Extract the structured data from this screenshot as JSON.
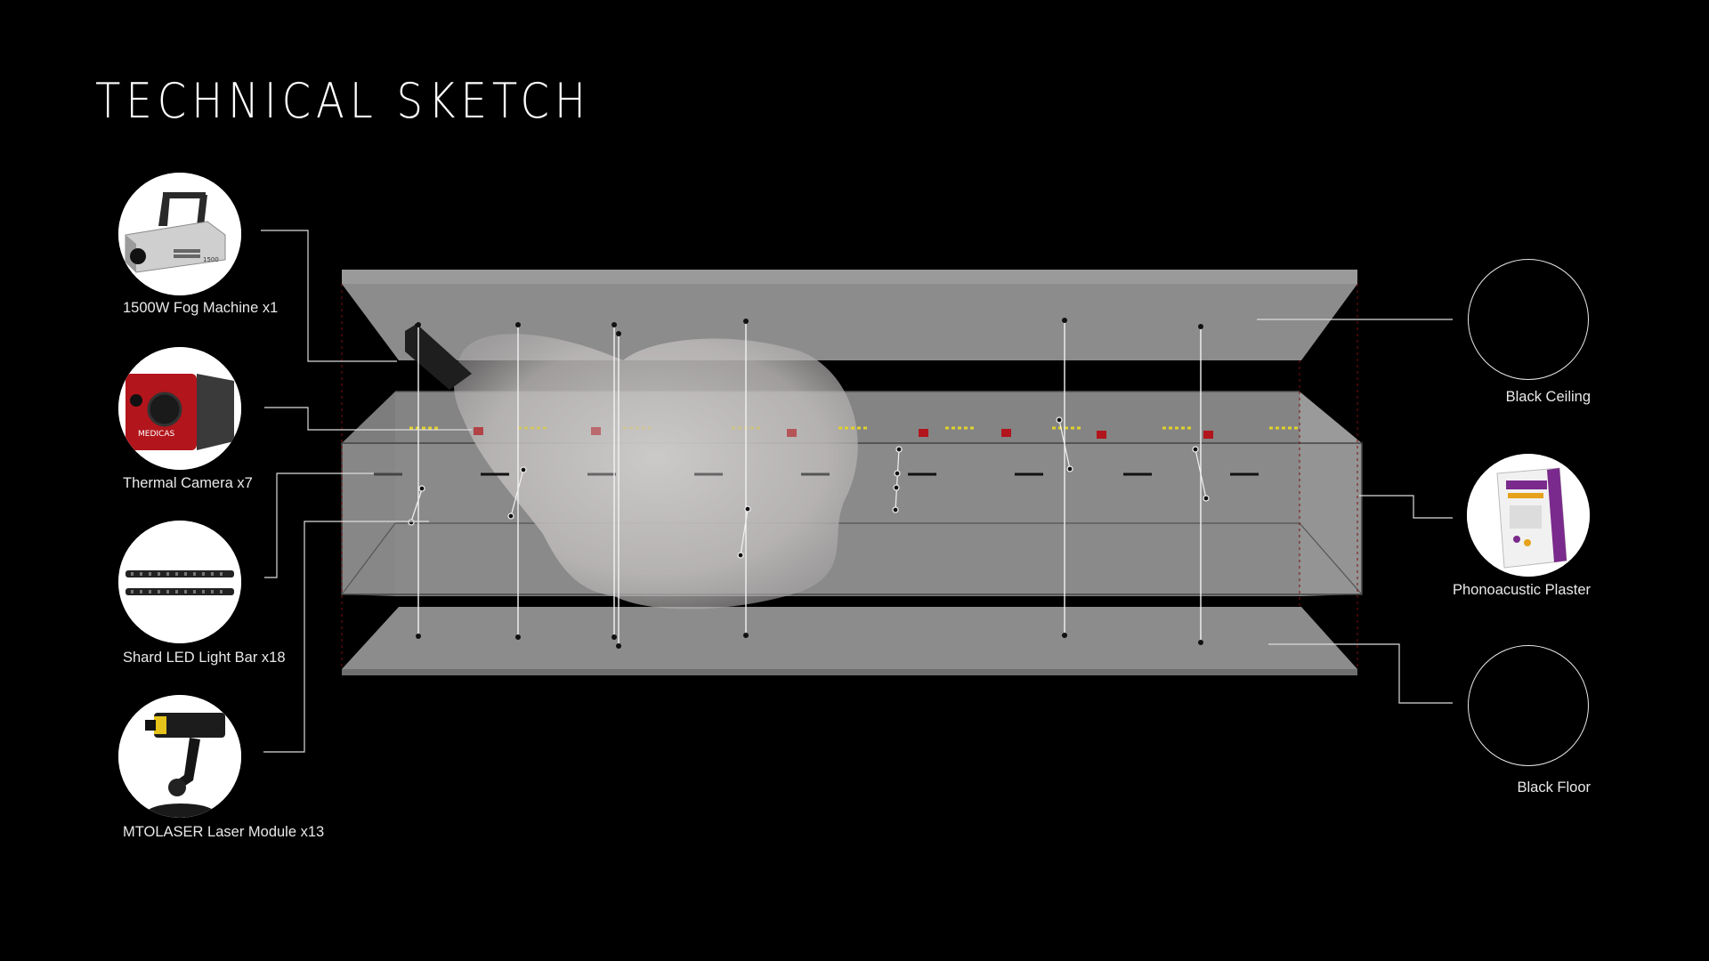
{
  "title": "TECHNICAL SKETCH",
  "equipment": [
    {
      "id": "fog",
      "label": "1500W Fog Machine x1",
      "icon": "fog-machine-icon"
    },
    {
      "id": "thermal",
      "label": "Thermal Camera x7",
      "icon": "thermal-camera-icon"
    },
    {
      "id": "led",
      "label": "Shard LED Light Bar x18",
      "icon": "led-light-bar-icon"
    },
    {
      "id": "laser",
      "label": "MTOLASER Laser Module x13",
      "icon": "laser-module-icon"
    }
  ],
  "materials": [
    {
      "id": "ceiling",
      "label": "Black  Ceiling",
      "icon": "black-ceiling-swatch"
    },
    {
      "id": "plaster",
      "label": "Phonoacustic Plaster",
      "icon": "plaster-bag-icon"
    },
    {
      "id": "floor",
      "label": "Black  Floor",
      "icon": "black-floor-swatch"
    }
  ],
  "thermal_camera_brand": "MEDICAS",
  "colors": {
    "background": "#000000",
    "panel": "#8e8e8e",
    "panel_light": "#a8a8a8",
    "fog": "#c9c6c6",
    "camera_red": "#b2151b",
    "led_yellow": "#e0d22a",
    "plaster_purple": "#7a2a8c"
  }
}
